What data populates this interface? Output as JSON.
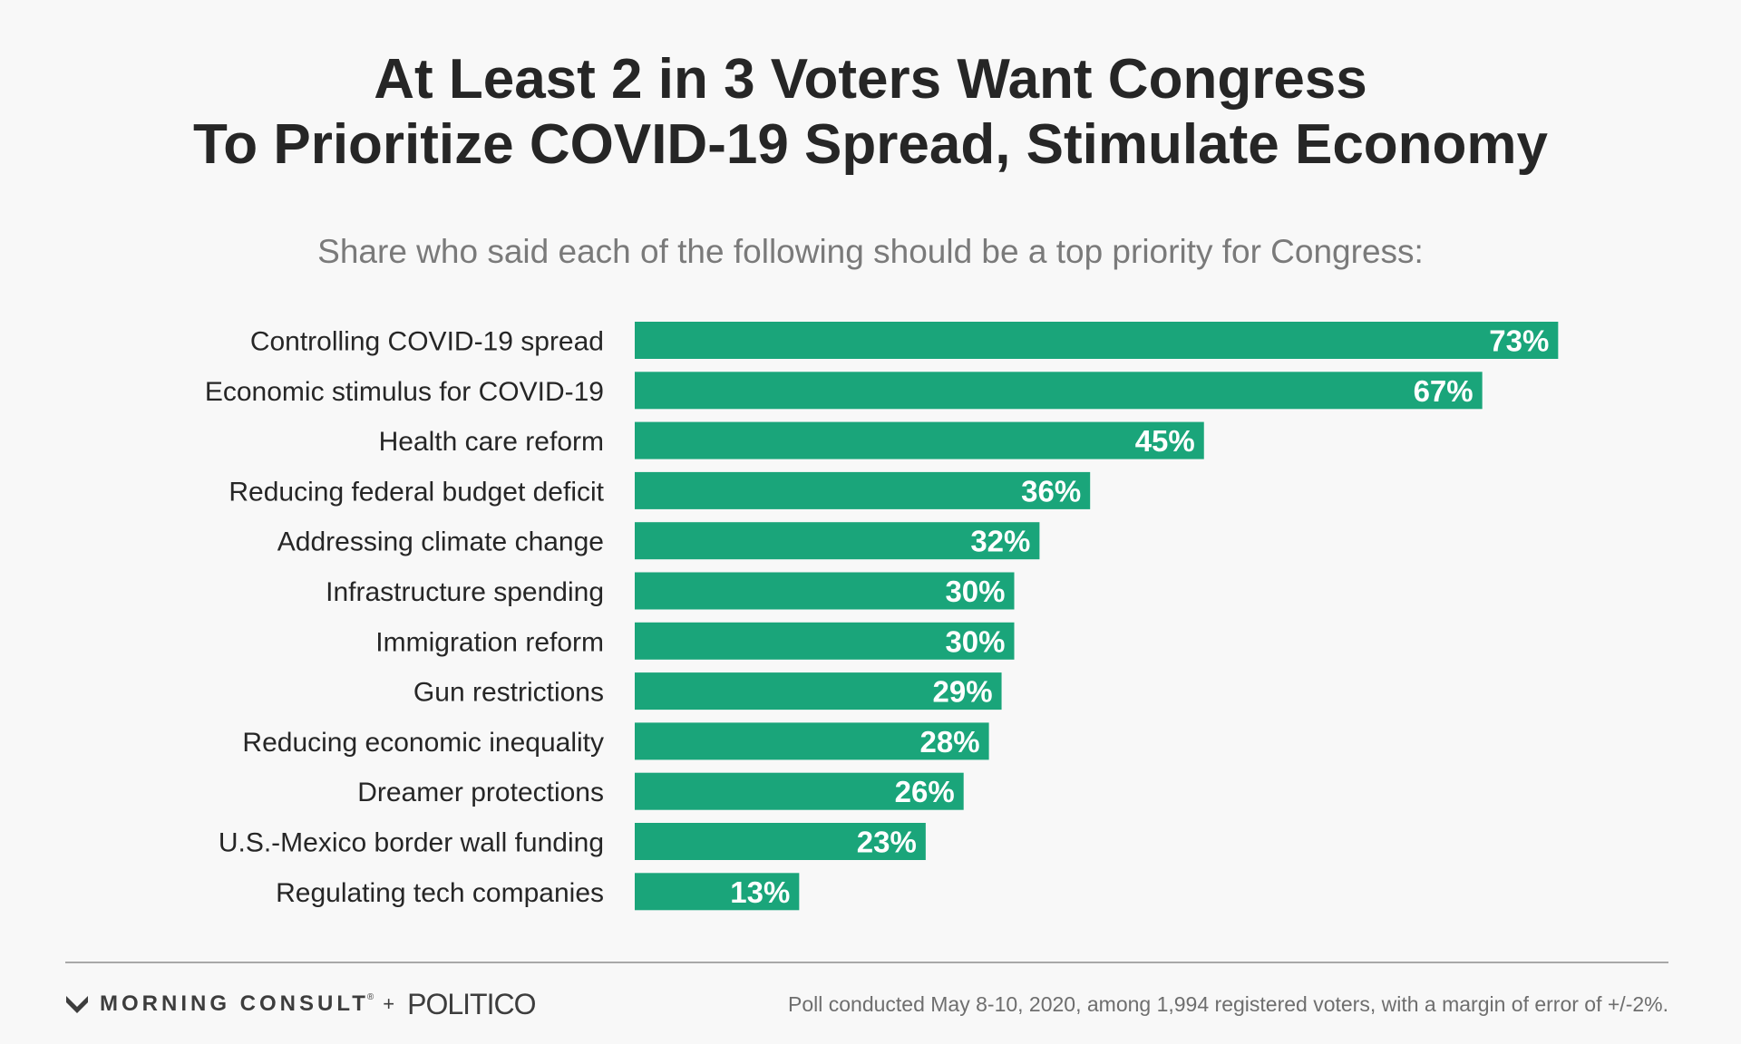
{
  "header": {
    "title_line1": "At Least 2 in 3 Voters Want Congress",
    "title_line2": "To Prioritize COVID-19 Spread, Stimulate Economy",
    "subtitle": "Share who said each of the following should be a top priority for Congress:"
  },
  "chart_data": {
    "type": "bar",
    "orientation": "horizontal",
    "categories": [
      "Controlling COVID-19 spread",
      "Economic stimulus for COVID-19",
      "Health care reform",
      "Reducing federal budget deficit",
      "Addressing climate change",
      "Infrastructure spending",
      "Immigration reform",
      "Gun restrictions",
      "Reducing economic inequality",
      "Dreamer protections",
      "U.S.-Mexico border wall funding",
      "Regulating tech companies"
    ],
    "values": [
      73,
      67,
      45,
      36,
      32,
      30,
      30,
      29,
      28,
      26,
      23,
      13
    ],
    "value_suffix": "%",
    "xlim": [
      0,
      73
    ],
    "grid": false,
    "legend": "none",
    "bar_color": "#1aa57a"
  },
  "footer": {
    "brand_left": "MORNING CONSULT",
    "brand_reg": "®",
    "brand_plus": "+",
    "brand_right": "POLITICO",
    "note": "Poll conducted May 8-10, 2020, among 1,994 registered voters, with a margin of error of +/-2%."
  },
  "colors": {
    "bar": "#1aa57a",
    "title": "#262626",
    "subtitle": "#7a7a7a"
  }
}
